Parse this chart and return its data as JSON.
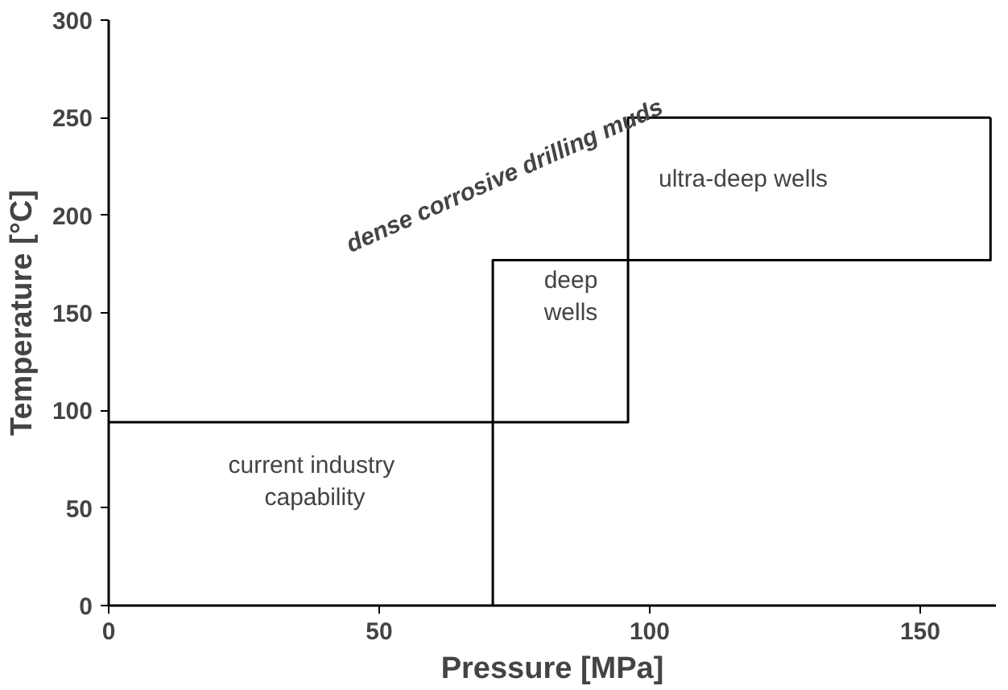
{
  "chart_data": {
    "type": "line",
    "xlabel": "Pressure [MPa]",
    "ylabel": "Temperature [°C]",
    "xlim": [
      0,
      164
    ],
    "ylim": [
      0,
      300
    ],
    "xticks": [
      0,
      50,
      100,
      150
    ],
    "yticks": [
      0,
      50,
      100,
      150,
      200,
      250,
      300
    ],
    "grid": false,
    "marker": "none",
    "line_style": "solid",
    "series": [
      {
        "color": "#000000",
        "x": [
          0,
          96,
          96,
          163,
          163
        ],
        "values": [
          94,
          94,
          177,
          177,
          250
        ]
      },
      {
        "color": "#000000",
        "x": [
          71,
          71,
          96,
          96,
          163
        ],
        "values": [
          0,
          177,
          177,
          250,
          250
        ]
      }
    ],
    "annotations": [
      "current  industry\ncapability",
      "deep\nwells",
      "ultra-deep wells",
      "dense corrosive drilling muds"
    ]
  }
}
